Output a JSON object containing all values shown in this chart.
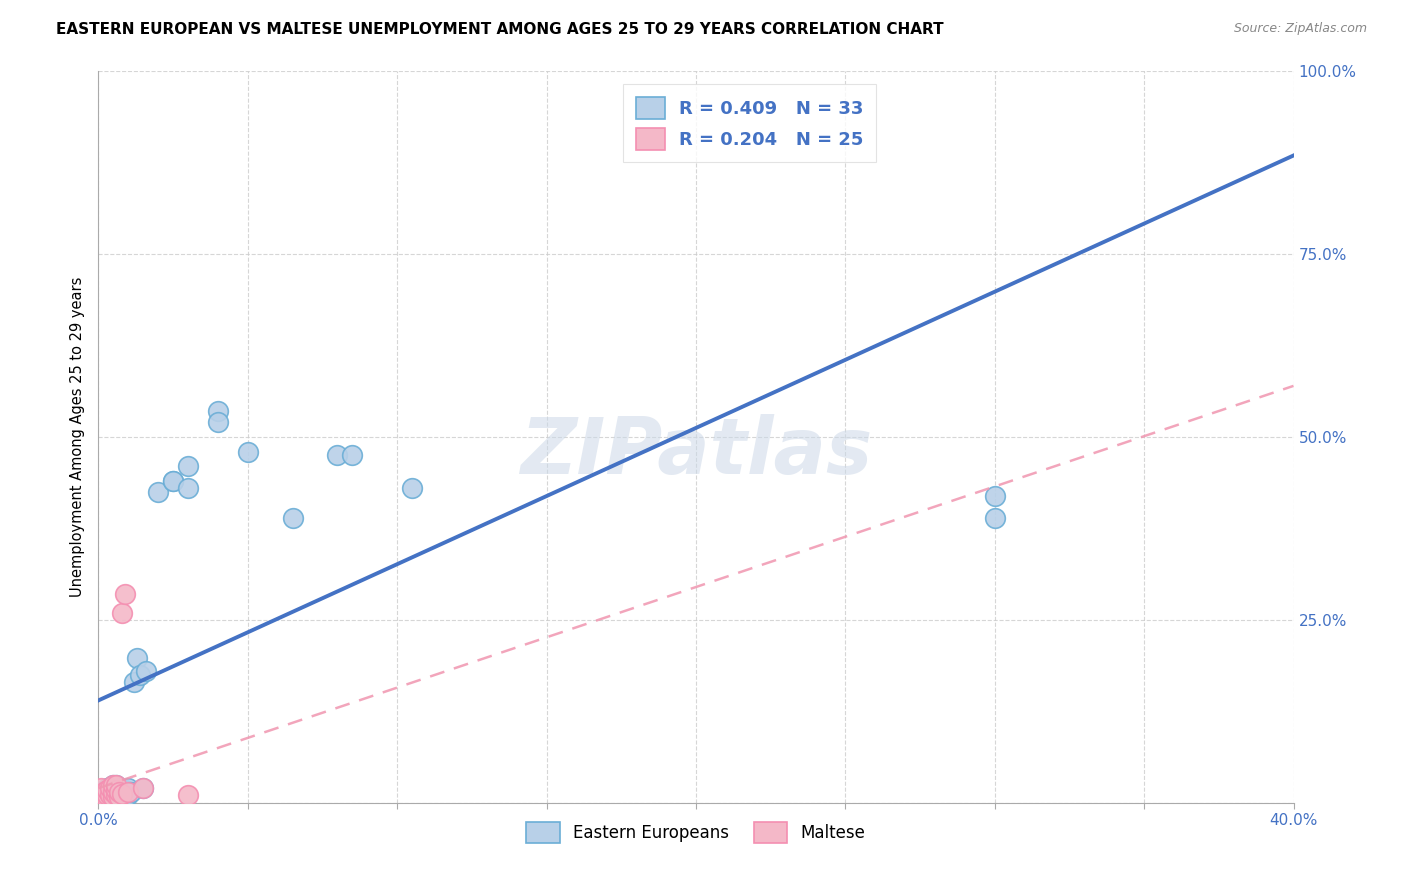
{
  "title": "EASTERN EUROPEAN VS MALTESE UNEMPLOYMENT AMONG AGES 25 TO 29 YEARS CORRELATION CHART",
  "source": "Source: ZipAtlas.com",
  "ylabel": "Unemployment Among Ages 25 to 29 years",
  "xlim": [
    0.0,
    0.4
  ],
  "ylim": [
    0.0,
    1.0
  ],
  "xticks": [
    0.0,
    0.05,
    0.1,
    0.15,
    0.2,
    0.25,
    0.3,
    0.35,
    0.4
  ],
  "xtick_labels": [
    "0.0%",
    "",
    "",
    "",
    "",
    "",
    "",
    "",
    "40.0%"
  ],
  "yticks": [
    0.0,
    0.25,
    0.5,
    0.75,
    1.0
  ],
  "ytick_labels": [
    "",
    "25.0%",
    "50.0%",
    "75.0%",
    "100.0%"
  ],
  "blue_R": 0.409,
  "blue_N": 33,
  "pink_R": 0.204,
  "pink_N": 25,
  "blue_color": "#b8d0e8",
  "blue_edge_color": "#6baed6",
  "pink_color": "#f4b8c8",
  "pink_edge_color": "#f48fb1",
  "blue_line_color": "#4472c4",
  "pink_line_color": "#f096b0",
  "watermark_color": "#ccd8e8",
  "blue_line_x": [
    0.0,
    0.4
  ],
  "blue_line_y": [
    0.14,
    0.885
  ],
  "pink_line_x": [
    0.0,
    0.4
  ],
  "pink_line_y": [
    0.02,
    0.57
  ],
  "blue_points_x": [
    0.001,
    0.001,
    0.001,
    0.002,
    0.002,
    0.002,
    0.003,
    0.003,
    0.004,
    0.004,
    0.005,
    0.005,
    0.005,
    0.006,
    0.006,
    0.006,
    0.007,
    0.007,
    0.008,
    0.009,
    0.01,
    0.01,
    0.011,
    0.012,
    0.013,
    0.014,
    0.015,
    0.016,
    0.02,
    0.025,
    0.065,
    0.105,
    0.3
  ],
  "blue_points_y": [
    0.005,
    0.01,
    0.015,
    0.005,
    0.008,
    0.015,
    0.01,
    0.02,
    0.008,
    0.015,
    0.01,
    0.018,
    0.025,
    0.008,
    0.015,
    0.025,
    0.012,
    0.02,
    0.015,
    0.018,
    0.01,
    0.02,
    0.015,
    0.165,
    0.198,
    0.175,
    0.02,
    0.18,
    0.425,
    0.44,
    0.39,
    0.43,
    0.42
  ],
  "pink_points_x": [
    0.001,
    0.001,
    0.001,
    0.002,
    0.002,
    0.002,
    0.003,
    0.003,
    0.003,
    0.004,
    0.004,
    0.005,
    0.005,
    0.005,
    0.006,
    0.006,
    0.006,
    0.007,
    0.007,
    0.008,
    0.008,
    0.009,
    0.01,
    0.015,
    0.03
  ],
  "pink_points_y": [
    0.005,
    0.008,
    0.02,
    0.005,
    0.01,
    0.015,
    0.005,
    0.01,
    0.018,
    0.01,
    0.02,
    0.008,
    0.015,
    0.025,
    0.01,
    0.018,
    0.025,
    0.008,
    0.015,
    0.012,
    0.26,
    0.285,
    0.015,
    0.02,
    0.01
  ],
  "blue_lone_x": [
    0.025,
    0.03,
    0.03,
    0.04,
    0.04,
    0.05,
    0.08,
    0.085,
    0.3
  ],
  "blue_lone_y": [
    0.44,
    0.46,
    0.43,
    0.535,
    0.52,
    0.48,
    0.475,
    0.475,
    0.39
  ]
}
